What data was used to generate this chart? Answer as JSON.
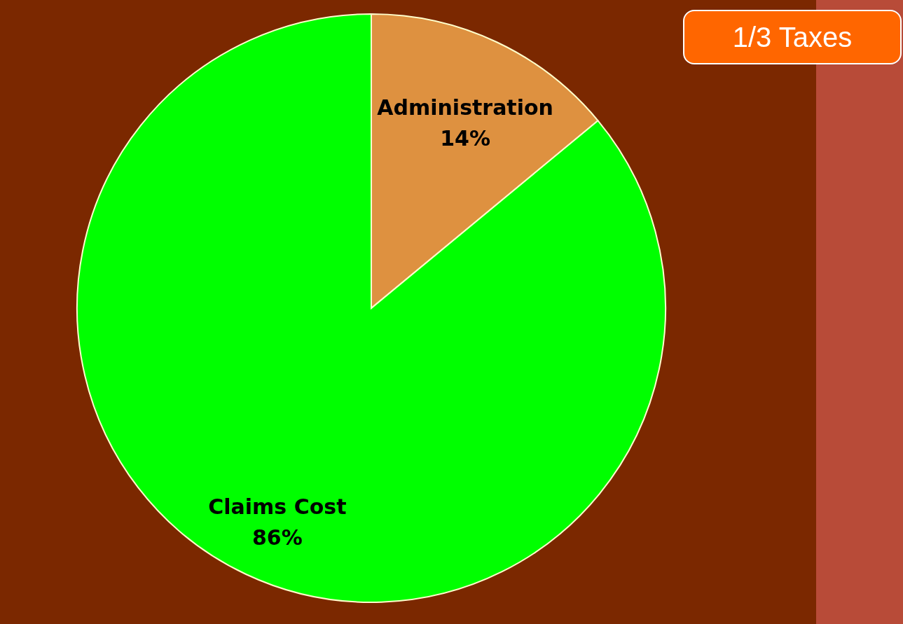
{
  "chart_data": {
    "type": "pie",
    "categories": [
      "Administration",
      "Claims Cost"
    ],
    "values": [
      14,
      86
    ],
    "colors": [
      "#de9140",
      "#00ff00"
    ],
    "value_labels": [
      "14%",
      "86%"
    ],
    "annotations": [
      "1/3 Taxes"
    ],
    "legend": false
  }
}
